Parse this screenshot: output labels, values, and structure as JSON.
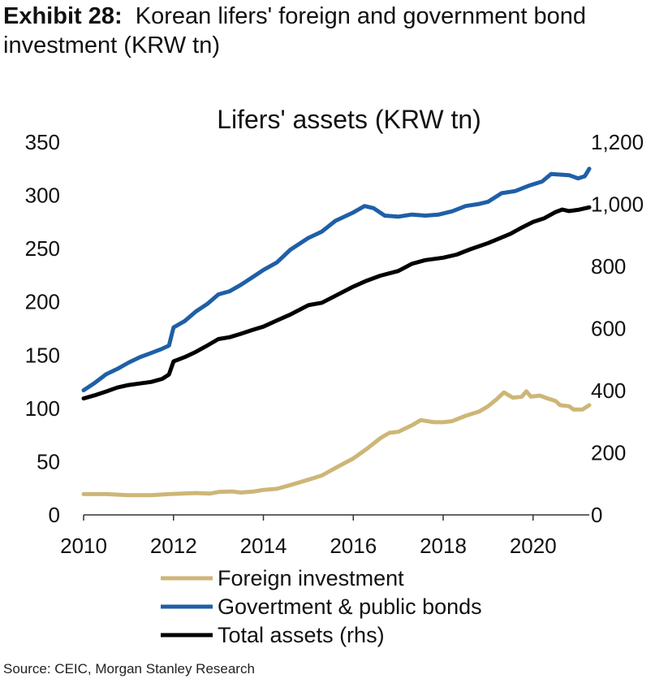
{
  "exhibit": {
    "lead": "Exhibit 28:",
    "title": "Korean lifers' foreign and government bond investment (KRW tn)",
    "source": "Source: CEIC, Morgan Stanley Research"
  },
  "chart_data": {
    "type": "line",
    "title": "Lifers' assets (KRW tn)",
    "xlabel": "",
    "ylabel": "",
    "xlim": [
      2010,
      2021.25
    ],
    "ylim_left": [
      0,
      350
    ],
    "ylim_right": [
      0,
      1200
    ],
    "x_ticks": [
      2010,
      2012,
      2014,
      2016,
      2018,
      2020
    ],
    "y_ticks_left": [
      "0",
      "50",
      "100",
      "150",
      "200",
      "250",
      "300",
      "350"
    ],
    "y_ticks_right": [
      "0",
      "200",
      "400",
      "600",
      "800",
      "1,000",
      "1,200"
    ],
    "grid": false,
    "legend_position": "bottom",
    "series": [
      {
        "name": "Foreign investment",
        "axis": "left",
        "color": "#cdb677",
        "points": [
          [
            2010.0,
            19.5
          ],
          [
            2010.5,
            19.5
          ],
          [
            2011.0,
            18.5
          ],
          [
            2011.5,
            18.5
          ],
          [
            2011.9,
            19.5
          ],
          [
            2012.5,
            20.5
          ],
          [
            2012.8,
            20.0
          ],
          [
            2013.0,
            21.5
          ],
          [
            2013.3,
            22.0
          ],
          [
            2013.5,
            21.0
          ],
          [
            2013.8,
            22.0
          ],
          [
            2014.0,
            23.5
          ],
          [
            2014.3,
            24.5
          ],
          [
            2014.6,
            28.0
          ],
          [
            2015.0,
            33.0
          ],
          [
            2015.3,
            37.0
          ],
          [
            2015.6,
            44.0
          ],
          [
            2016.0,
            53.0
          ],
          [
            2016.3,
            62.0
          ],
          [
            2016.6,
            72.0
          ],
          [
            2016.8,
            77.0
          ],
          [
            2017.0,
            78.0
          ],
          [
            2017.3,
            84.0
          ],
          [
            2017.5,
            89.0
          ],
          [
            2017.8,
            87.0
          ],
          [
            2018.0,
            87.0
          ],
          [
            2018.2,
            88.0
          ],
          [
            2018.5,
            93.0
          ],
          [
            2018.8,
            97.0
          ],
          [
            2019.0,
            102.0
          ],
          [
            2019.2,
            109.0
          ],
          [
            2019.35,
            115.0
          ],
          [
            2019.55,
            110.0
          ],
          [
            2019.75,
            111.0
          ],
          [
            2019.85,
            116.0
          ],
          [
            2019.95,
            111.0
          ],
          [
            2020.15,
            112.0
          ],
          [
            2020.35,
            109.0
          ],
          [
            2020.5,
            107.0
          ],
          [
            2020.6,
            103.0
          ],
          [
            2020.8,
            102.0
          ],
          [
            2020.9,
            99.0
          ],
          [
            2021.1,
            99.0
          ],
          [
            2021.25,
            103.0
          ]
        ]
      },
      {
        "name": "Govertment & public bonds",
        "axis": "left",
        "color": "#1f5fa6",
        "points": [
          [
            2010.0,
            117.0
          ],
          [
            2010.25,
            124.0
          ],
          [
            2010.5,
            132.0
          ],
          [
            2010.75,
            137.0
          ],
          [
            2011.0,
            143.0
          ],
          [
            2011.25,
            148.0
          ],
          [
            2011.5,
            152.0
          ],
          [
            2011.75,
            156.0
          ],
          [
            2011.9,
            159.0
          ],
          [
            2012.0,
            176.0
          ],
          [
            2012.25,
            182.0
          ],
          [
            2012.5,
            191.0
          ],
          [
            2012.75,
            198.0
          ],
          [
            2013.0,
            207.0
          ],
          [
            2013.25,
            210.0
          ],
          [
            2013.5,
            216.0
          ],
          [
            2013.75,
            223.0
          ],
          [
            2014.0,
            230.0
          ],
          [
            2014.3,
            237.0
          ],
          [
            2014.6,
            249.0
          ],
          [
            2015.0,
            260.0
          ],
          [
            2015.3,
            266.0
          ],
          [
            2015.6,
            276.0
          ],
          [
            2016.0,
            284.0
          ],
          [
            2016.25,
            290.0
          ],
          [
            2016.45,
            288.0
          ],
          [
            2016.7,
            281.0
          ],
          [
            2017.0,
            280.0
          ],
          [
            2017.3,
            282.0
          ],
          [
            2017.6,
            281.0
          ],
          [
            2017.9,
            282.0
          ],
          [
            2018.2,
            285.0
          ],
          [
            2018.5,
            290.0
          ],
          [
            2018.8,
            292.0
          ],
          [
            2019.0,
            294.0
          ],
          [
            2019.3,
            302.0
          ],
          [
            2019.6,
            304.0
          ],
          [
            2019.9,
            309.0
          ],
          [
            2020.2,
            313.0
          ],
          [
            2020.4,
            320.0
          ],
          [
            2020.8,
            319.0
          ],
          [
            2021.0,
            316.0
          ],
          [
            2021.15,
            318.0
          ],
          [
            2021.25,
            325.0
          ]
        ]
      },
      {
        "name": "Total assets (rhs)",
        "axis": "right",
        "color": "#000000",
        "points": [
          [
            2010.0,
            375.0
          ],
          [
            2010.25,
            385.0
          ],
          [
            2010.5,
            397.0
          ],
          [
            2010.75,
            410.0
          ],
          [
            2011.0,
            418.0
          ],
          [
            2011.25,
            423.0
          ],
          [
            2011.5,
            428.0
          ],
          [
            2011.75,
            438.0
          ],
          [
            2011.9,
            452.0
          ],
          [
            2012.0,
            494.0
          ],
          [
            2012.25,
            508.0
          ],
          [
            2012.5,
            525.0
          ],
          [
            2012.75,
            545.0
          ],
          [
            2013.0,
            566.0
          ],
          [
            2013.25,
            572.0
          ],
          [
            2013.5,
            583.0
          ],
          [
            2013.75,
            595.0
          ],
          [
            2014.0,
            606.0
          ],
          [
            2014.3,
            626.0
          ],
          [
            2014.6,
            645.0
          ],
          [
            2015.0,
            675.0
          ],
          [
            2015.3,
            683.0
          ],
          [
            2015.6,
            705.0
          ],
          [
            2016.0,
            735.0
          ],
          [
            2016.3,
            754.0
          ],
          [
            2016.6,
            770.0
          ],
          [
            2017.0,
            785.0
          ],
          [
            2017.3,
            808.0
          ],
          [
            2017.6,
            820.0
          ],
          [
            2018.0,
            828.0
          ],
          [
            2018.3,
            838.0
          ],
          [
            2018.6,
            855.0
          ],
          [
            2019.0,
            875.0
          ],
          [
            2019.3,
            893.0
          ],
          [
            2019.5,
            905.0
          ],
          [
            2019.75,
            925.0
          ],
          [
            2020.0,
            943.0
          ],
          [
            2020.25,
            955.0
          ],
          [
            2020.5,
            975.0
          ],
          [
            2020.65,
            983.0
          ],
          [
            2020.8,
            978.0
          ],
          [
            2021.0,
            982.0
          ],
          [
            2021.25,
            990.0
          ]
        ]
      }
    ]
  }
}
